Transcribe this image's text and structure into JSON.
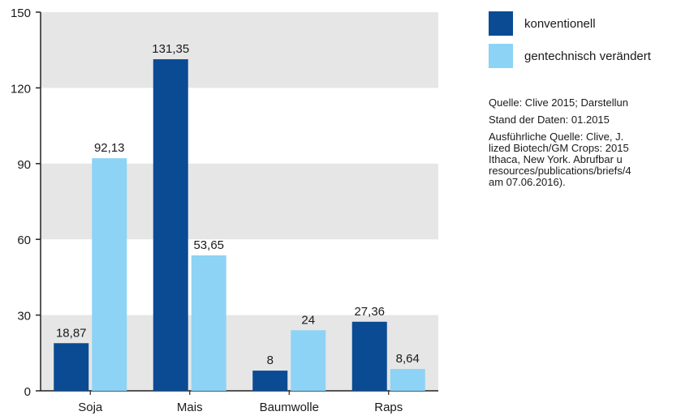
{
  "colors": {
    "konventionell": "#0b4b94",
    "gentechnisch": "#8dd3f5",
    "band": "#e6e6e6",
    "axis": "#222222"
  },
  "legend": {
    "items": [
      {
        "label": "konventionell",
        "color": "#0b4b94"
      },
      {
        "label": "gentechnisch verändert",
        "color": "#8dd3f5"
      }
    ]
  },
  "source": {
    "line1": "Quelle: Clive 2015; Darstellun",
    "line2": "Stand der Daten: 01.2015",
    "detail": "Ausführliche Quelle: Clive, J. \nlized Biotech/GM Crops: 2015\nIthaca, New York. Abrufbar u\nresources/publications/briefs/4\nam 07.06.2016)."
  },
  "chart_data": {
    "type": "bar",
    "categories": [
      "Soja",
      "Mais",
      "Baumwolle",
      "Raps"
    ],
    "series": [
      {
        "name": "konventionell",
        "values": [
          18.87,
          131.35,
          8,
          27.36
        ],
        "labels": [
          "18,87",
          "131,35",
          "8",
          "27,36"
        ]
      },
      {
        "name": "gentechnisch verändert",
        "values": [
          92.13,
          53.65,
          24,
          8.64
        ],
        "labels": [
          "92,13",
          "53,65",
          "24",
          "8,64"
        ]
      }
    ],
    "ylim": [
      0,
      150
    ],
    "yticks": [
      0,
      30,
      60,
      90,
      120,
      150
    ],
    "ytick_labels": [
      "0",
      "30",
      "60",
      "90",
      "120",
      "150"
    ],
    "grid": "alternating horizontal bands",
    "legend_position": "top-right"
  }
}
